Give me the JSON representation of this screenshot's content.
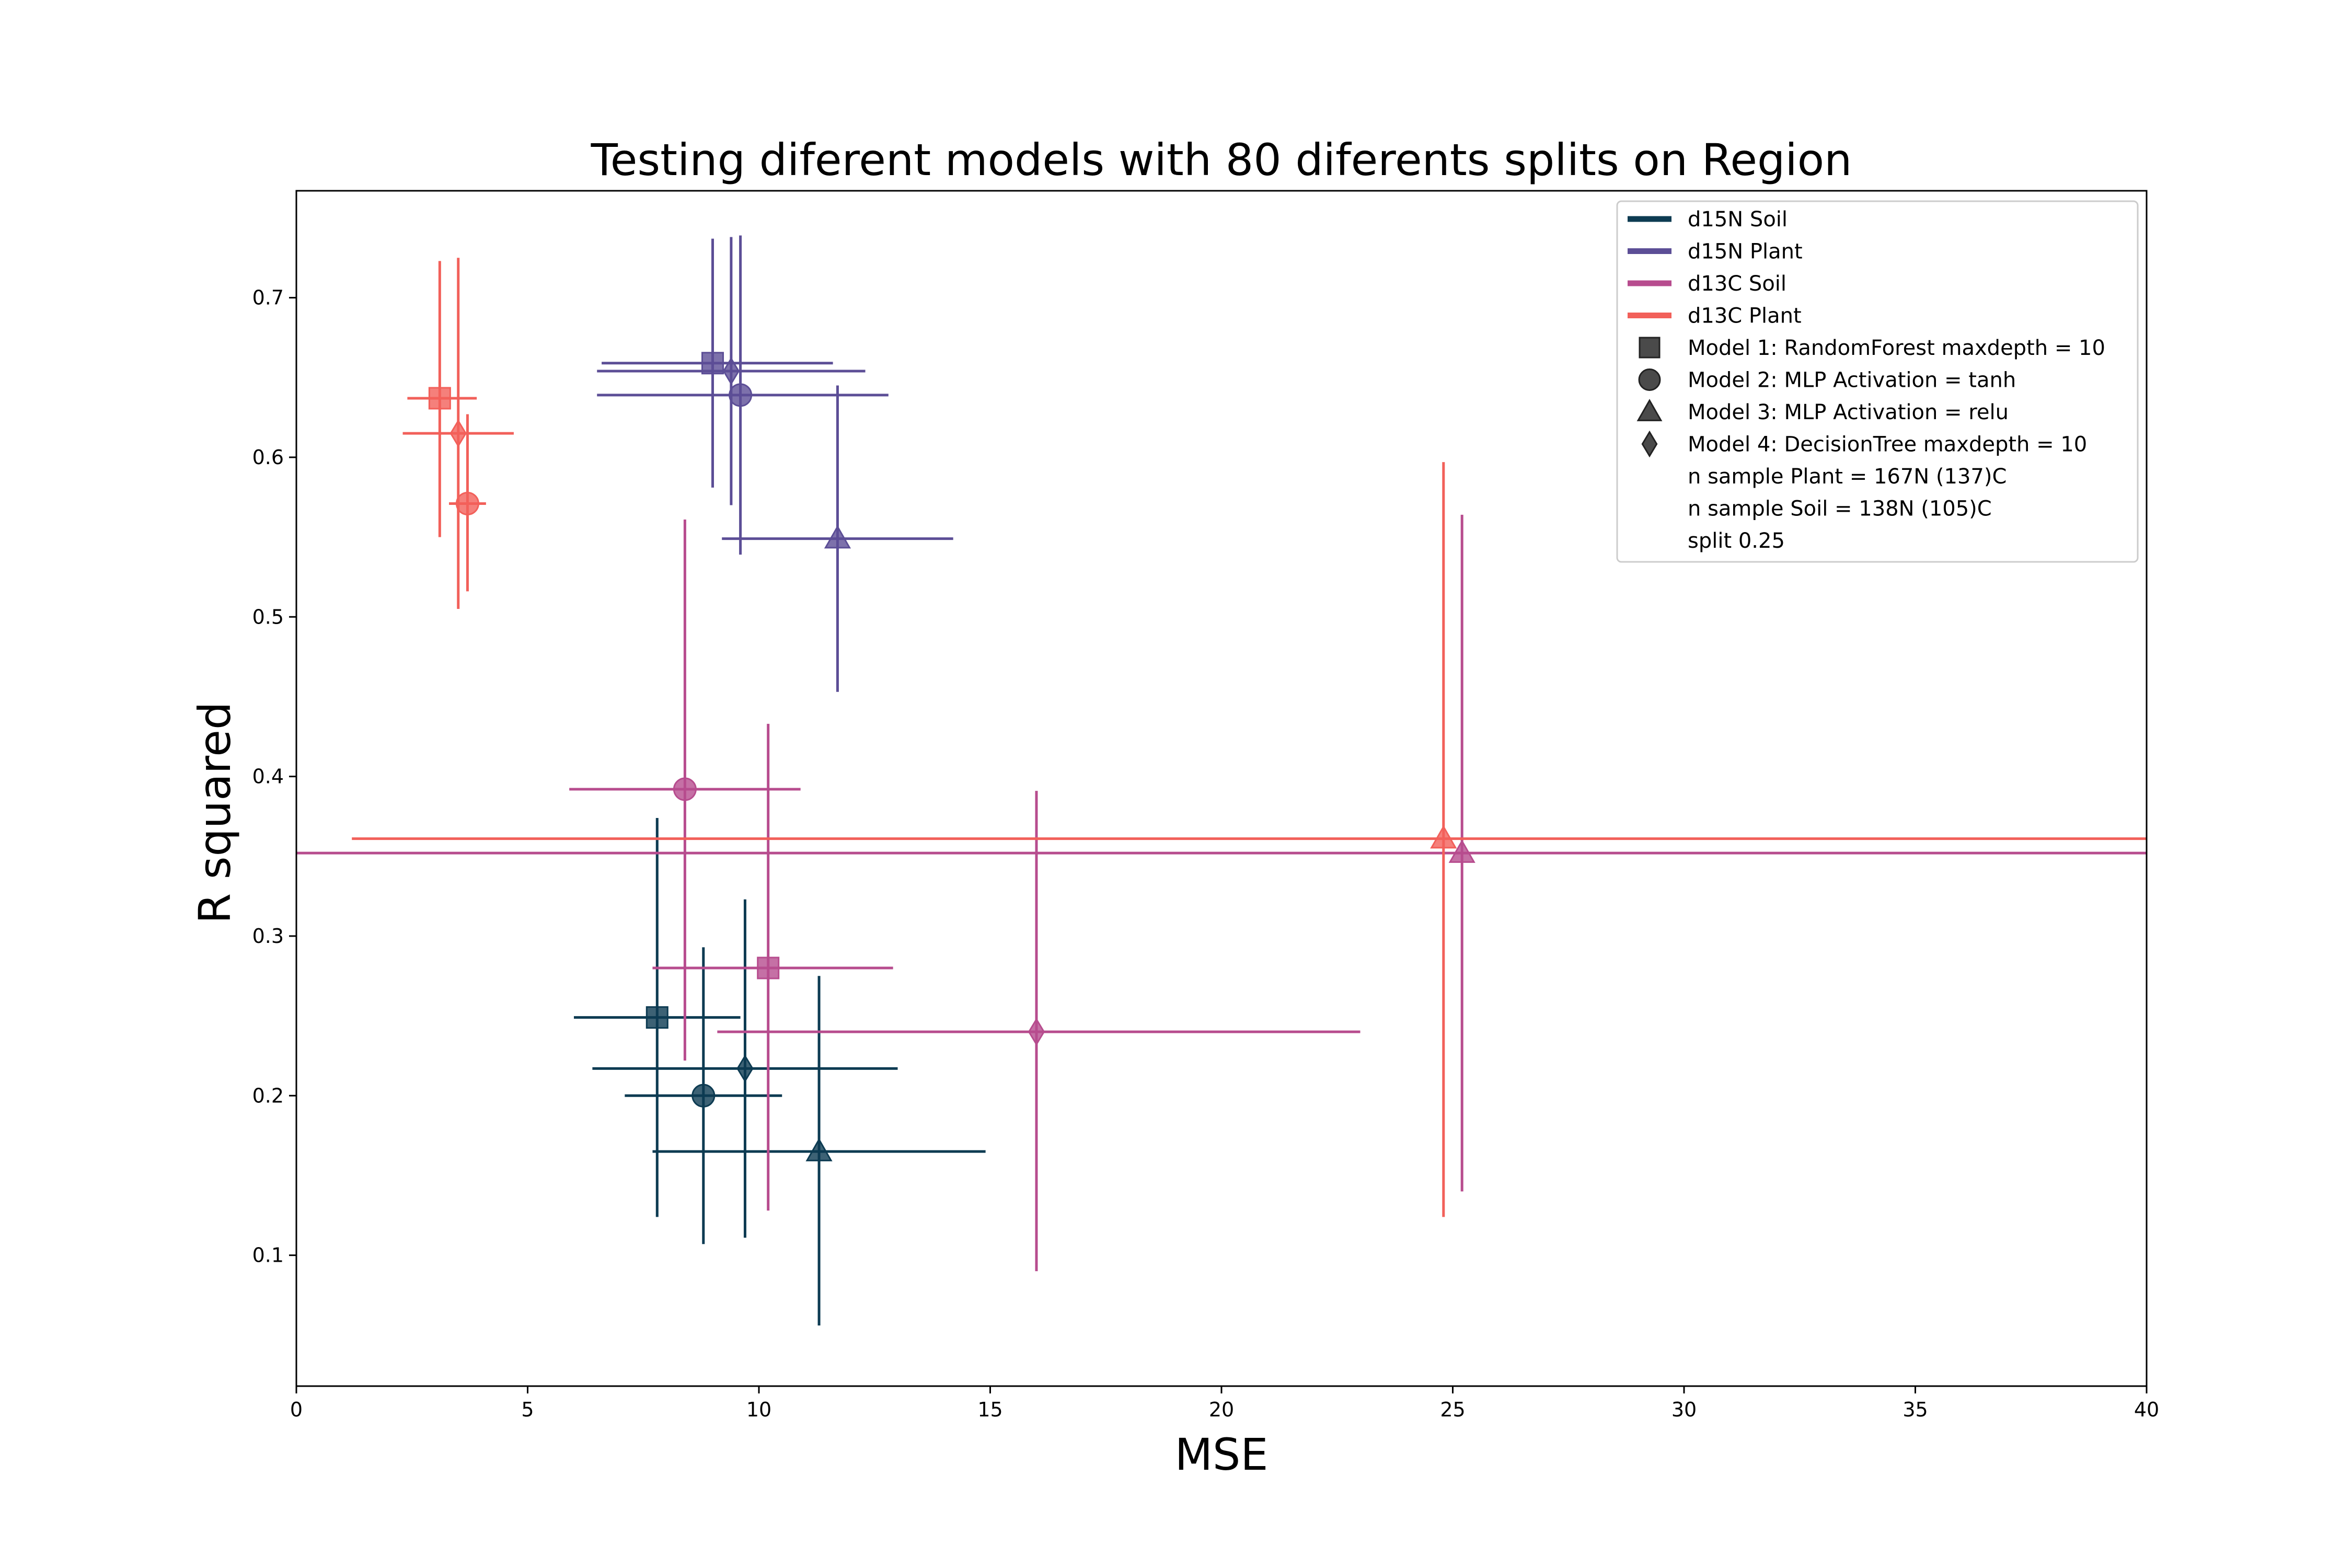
{
  "chart_data": {
    "type": "scatter",
    "title": "Testing diferent models with 80 diferents splits on Region",
    "xlabel": "MSE",
    "ylabel": "R squared",
    "xlim": [
      0,
      40
    ],
    "ylim": [
      0.018,
      0.767
    ],
    "xticks": [
      0,
      5,
      10,
      15,
      20,
      25,
      30,
      35,
      40
    ],
    "yticks": [
      0.1,
      0.2,
      0.3,
      0.4,
      0.5,
      0.6,
      0.7
    ],
    "grid": false,
    "legend_position": "top-right",
    "series": [
      {
        "name": "d15N Soil",
        "color": "#0d3b52",
        "points": [
          {
            "model": "Model 1",
            "marker": "square",
            "x": 7.8,
            "y": 0.249,
            "xerr": [
              6.0,
              9.6
            ],
            "yerr": [
              0.124,
              0.374
            ]
          },
          {
            "model": "Model 2",
            "marker": "circle",
            "x": 8.8,
            "y": 0.2,
            "xerr": [
              7.1,
              10.5
            ],
            "yerr": [
              0.107,
              0.293
            ]
          },
          {
            "model": "Model 3",
            "marker": "triangle",
            "x": 11.3,
            "y": 0.165,
            "xerr": [
              7.7,
              14.9
            ],
            "yerr": [
              0.056,
              0.275
            ]
          },
          {
            "model": "Model 4",
            "marker": "diamond",
            "x": 9.7,
            "y": 0.217,
            "xerr": [
              6.4,
              13.0
            ],
            "yerr": [
              0.111,
              0.323
            ]
          }
        ]
      },
      {
        "name": "d15N Plant",
        "color": "#5c4e96",
        "points": [
          {
            "model": "Model 1",
            "marker": "square",
            "x": 9.0,
            "y": 0.659,
            "xerr": [
              6.6,
              11.6
            ],
            "yerr": [
              0.581,
              0.737
            ]
          },
          {
            "model": "Model 2",
            "marker": "circle",
            "x": 9.6,
            "y": 0.639,
            "xerr": [
              6.5,
              12.8
            ],
            "yerr": [
              0.539,
              0.739
            ]
          },
          {
            "model": "Model 3",
            "marker": "triangle",
            "x": 11.7,
            "y": 0.549,
            "xerr": [
              9.2,
              14.2
            ],
            "yerr": [
              0.453,
              0.645
            ]
          },
          {
            "model": "Model 4",
            "marker": "diamond",
            "x": 9.4,
            "y": 0.654,
            "xerr": [
              6.5,
              12.3
            ],
            "yerr": [
              0.57,
              0.738
            ]
          }
        ]
      },
      {
        "name": "d13C Soil",
        "color": "#b74c8e",
        "points": [
          {
            "model": "Model 1",
            "marker": "square",
            "x": 10.2,
            "y": 0.28,
            "xerr": [
              7.7,
              12.9
            ],
            "yerr": [
              0.128,
              0.433
            ]
          },
          {
            "model": "Model 2",
            "marker": "circle",
            "x": 8.4,
            "y": 0.392,
            "xerr": [
              5.9,
              10.9
            ],
            "yerr": [
              0.222,
              0.561
            ]
          },
          {
            "model": "Model 3",
            "marker": "triangle",
            "x": 25.2,
            "y": 0.352,
            "xerr": [
              0.0,
              40.0
            ],
            "yerr": [
              0.14,
              0.564
            ]
          },
          {
            "model": "Model 4",
            "marker": "diamond",
            "x": 16.0,
            "y": 0.24,
            "xerr": [
              9.1,
              23.0
            ],
            "yerr": [
              0.09,
              0.391
            ]
          }
        ]
      },
      {
        "name": "d13C Plant",
        "color": "#f2605a",
        "points": [
          {
            "model": "Model 1",
            "marker": "square",
            "x": 3.1,
            "y": 0.637,
            "xerr": [
              2.4,
              3.9
            ],
            "yerr": [
              0.55,
              0.723
            ]
          },
          {
            "model": "Model 2",
            "marker": "circle",
            "x": 3.7,
            "y": 0.571,
            "xerr": [
              3.3,
              4.1
            ],
            "yerr": [
              0.516,
              0.627
            ]
          },
          {
            "model": "Model 3",
            "marker": "triangle",
            "x": 24.8,
            "y": 0.361,
            "xerr": [
              1.2,
              40.0
            ],
            "yerr": [
              0.124,
              0.597
            ]
          },
          {
            "model": "Model 4",
            "marker": "diamond",
            "x": 3.5,
            "y": 0.615,
            "xerr": [
              2.3,
              4.7
            ],
            "yerr": [
              0.505,
              0.725
            ]
          }
        ]
      }
    ],
    "legend": [
      {
        "kind": "line",
        "color": "#0d3b52",
        "label": "d15N Soil"
      },
      {
        "kind": "line",
        "color": "#5c4e96",
        "label": "d15N Plant"
      },
      {
        "kind": "line",
        "color": "#b74c8e",
        "label": "d13C Soil"
      },
      {
        "kind": "line",
        "color": "#f2605a",
        "label": "d13C Plant"
      },
      {
        "kind": "marker",
        "marker": "square",
        "label": "Model 1: RandomForest maxdepth = 10"
      },
      {
        "kind": "marker",
        "marker": "circle",
        "label": "Model 2: MLP Activation = tanh"
      },
      {
        "kind": "marker",
        "marker": "triangle",
        "label": "Model 3: MLP Activation = relu"
      },
      {
        "kind": "marker",
        "marker": "diamond",
        "label": "Model 4: DecisionTree maxdepth = 10"
      },
      {
        "kind": "text",
        "label": "n sample Plant = 167N (137)C"
      },
      {
        "kind": "text",
        "label": "n sample Soil = 138N (105)C"
      },
      {
        "kind": "text",
        "label": "split 0.25"
      }
    ]
  }
}
